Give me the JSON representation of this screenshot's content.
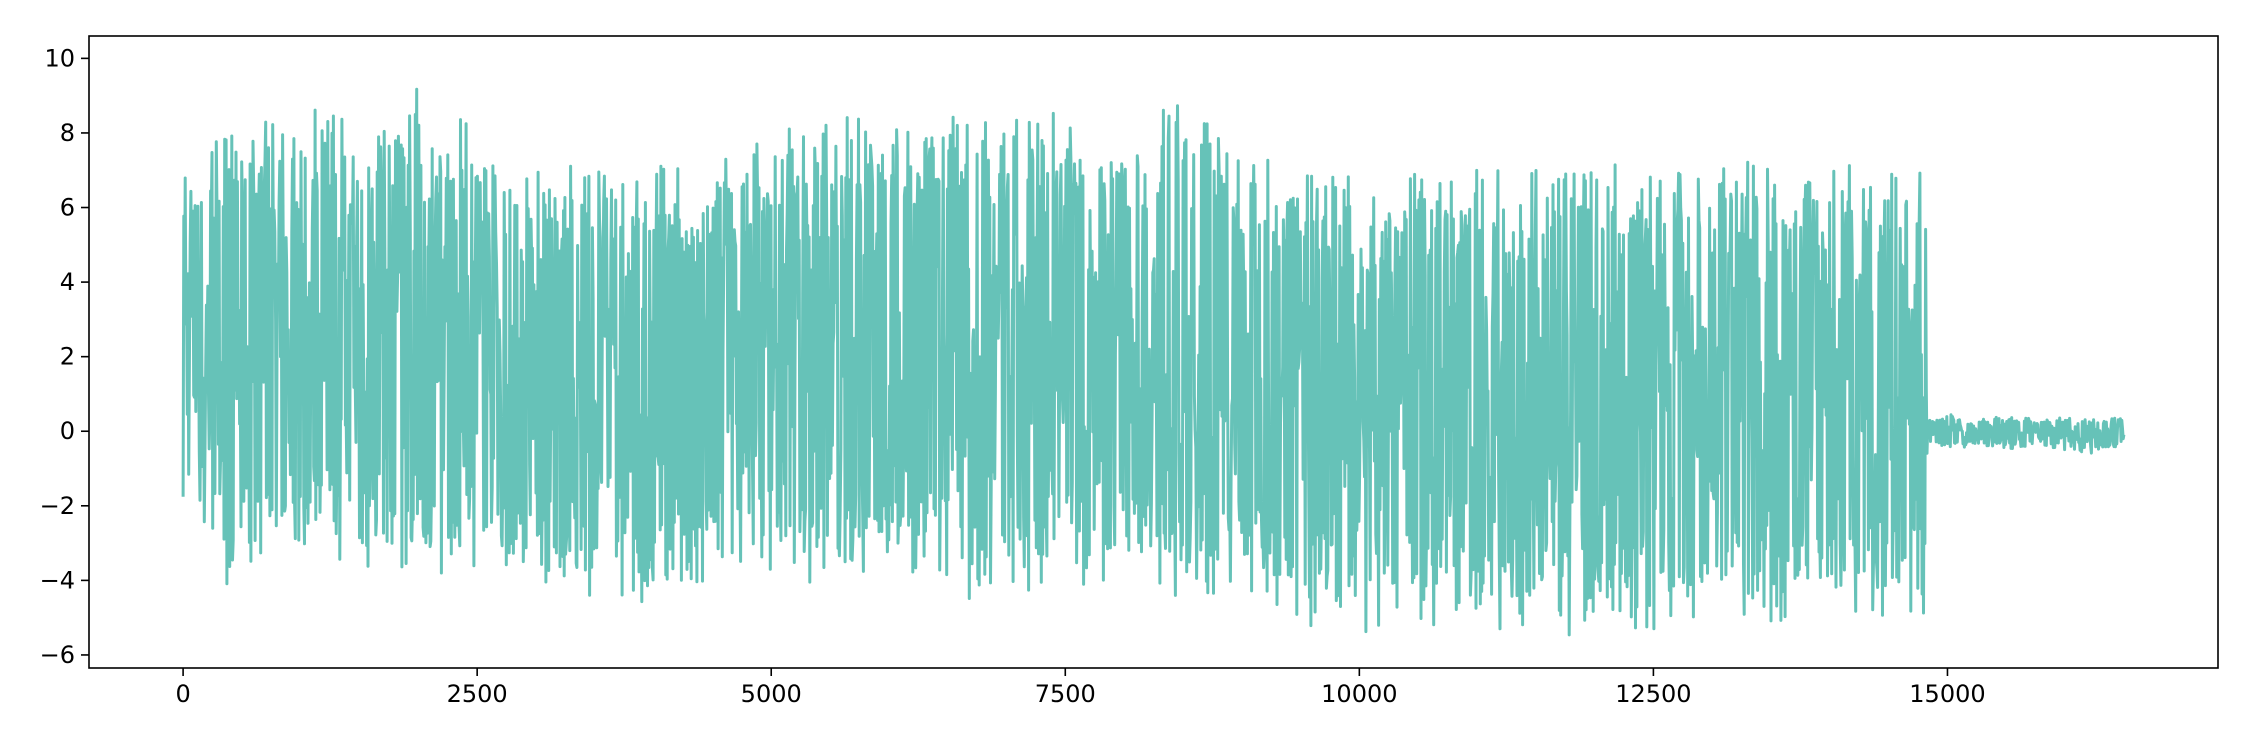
{
  "chart_data": {
    "type": "line",
    "title": "",
    "xlabel": "",
    "ylabel": "",
    "xlim": [
      -800,
      17300
    ],
    "ylim": [
      -6.35,
      10.6
    ],
    "xticks": [
      0,
      2500,
      5000,
      7500,
      10000,
      12500,
      15000
    ],
    "xtick_labels": [
      "0",
      "2500",
      "5000",
      "7500",
      "10000",
      "12500",
      "15000"
    ],
    "yticks": [
      -6,
      -4,
      -2,
      0,
      2,
      4,
      6,
      8,
      10
    ],
    "ytick_labels": [
      "−6",
      "−4",
      "−2",
      "0",
      "2",
      "4",
      "6",
      "8",
      "10"
    ],
    "grid": false,
    "legend": "none",
    "series_color": "#66c2b8",
    "series": [
      {
        "x": [
          0,
          240,
          480,
          720,
          960,
          1200,
          1440,
          1680,
          1920,
          2160,
          2400,
          2640,
          2880,
          3120,
          3360,
          3600,
          3840,
          4080,
          4320,
          4560,
          4800,
          5040,
          5280,
          5520,
          5760,
          6000,
          6240,
          6480,
          6720,
          6960,
          7200,
          7440,
          7680,
          7920,
          8160,
          8400,
          8640,
          8880,
          9120,
          9360,
          9600,
          9840,
          10080,
          10320,
          10560,
          10800,
          11040,
          11280,
          11520,
          11760,
          12000,
          12240,
          12480,
          12720,
          12960,
          13200,
          13440,
          13680,
          13920,
          14160,
          14400,
          14640,
          14800,
          14840,
          15000,
          15200,
          15400,
          15600,
          15800,
          16000,
          16200,
          16400,
          16500
        ],
        "y_max": [
          7.2,
          7.9,
          8.2,
          8.5,
          8.0,
          9.1,
          8.4,
          9.2,
          9.8,
          8.6,
          8.4,
          8.1,
          7.0,
          7.5,
          7.3,
          7.2,
          7.0,
          7.2,
          7.0,
          7.2,
          8.0,
          8.2,
          8.6,
          8.6,
          8.7,
          9.3,
          8.4,
          8.9,
          8.5,
          8.0,
          8.7,
          8.8,
          8.2,
          8.2,
          8.6,
          9.0,
          8.7,
          8.0,
          7.8,
          7.4,
          7.2,
          7.0,
          6.5,
          6.8,
          7.0,
          6.9,
          7.2,
          7.0,
          7.0,
          6.9,
          7.0,
          7.2,
          7.0,
          7.2,
          7.0,
          7.4,
          7.0,
          7.2,
          7.3,
          7.2,
          7.4,
          7.2,
          8.2,
          0.3,
          0.5,
          0.3,
          0.4,
          0.4,
          0.3,
          0.4,
          0.3,
          0.4,
          0.4
        ],
        "y_min": [
          -1.9,
          -4.0,
          -4.3,
          -4.0,
          -4.0,
          -3.9,
          -3.7,
          -4.3,
          -4.0,
          -3.9,
          -3.9,
          -3.6,
          -4.4,
          -4.1,
          -4.9,
          -4.2,
          -4.7,
          -4.5,
          -4.5,
          -4.0,
          -3.8,
          -3.8,
          -4.2,
          -4.2,
          -4.0,
          -4.4,
          -4.2,
          -4.5,
          -4.5,
          -4.3,
          -4.5,
          -4.1,
          -4.3,
          -4.0,
          -4.0,
          -4.4,
          -4.5,
          -4.4,
          -4.5,
          -4.8,
          -5.3,
          -5.0,
          -5.6,
          -5.5,
          -5.3,
          -5.1,
          -5.0,
          -5.6,
          -5.0,
          -5.6,
          -5.0,
          -5.3,
          -5.5,
          -5.0,
          -5.0,
          -5.1,
          -5.3,
          -5.2,
          -5.0,
          -5.1,
          -5.2,
          -5.0,
          -4.9,
          -0.3,
          -0.5,
          -0.4,
          -0.4,
          -0.5,
          -0.4,
          -0.5,
          -0.6,
          -0.5,
          -0.4
        ]
      }
    ]
  }
}
